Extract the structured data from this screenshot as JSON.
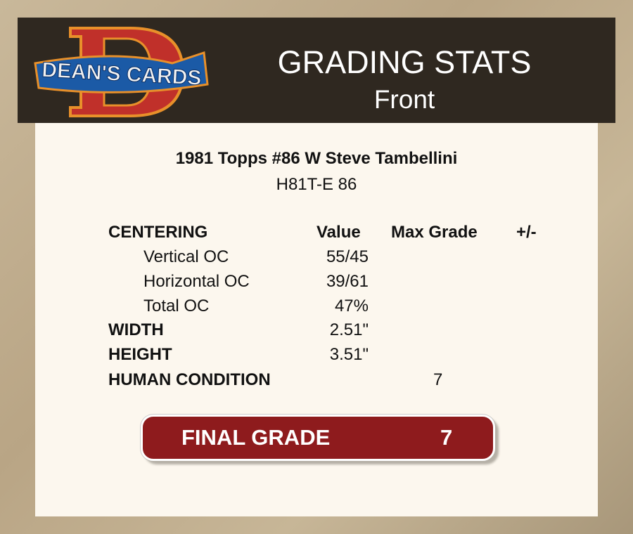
{
  "header": {
    "logo_text": "DEAN'S CARDS",
    "title": "GRADING STATS",
    "subtitle": "Front"
  },
  "card": {
    "name": "1981 Topps #86 W Steve Tambellini",
    "code": "H81T-E 86"
  },
  "columns": {
    "section": "CENTERING",
    "value": "Value",
    "max_grade": "Max Grade",
    "plus_minus": "+/-"
  },
  "rows": [
    {
      "label": "Vertical OC",
      "value": "55/45"
    },
    {
      "label": "Horizontal OC",
      "value": "39/61"
    },
    {
      "label": "Total OC",
      "value": "47%"
    },
    {
      "label": "WIDTH",
      "value": "2.51\""
    },
    {
      "label": "HEIGHT",
      "value": "3.51\""
    },
    {
      "label": "HUMAN CONDITION",
      "max_grade": "7"
    }
  ],
  "final": {
    "label": "FINAL GRADE",
    "value": "7"
  },
  "colors": {
    "header_bg": "#2f2820",
    "panel_bg": "#fcf7ee",
    "grade_bg": "#8e1b1d"
  }
}
